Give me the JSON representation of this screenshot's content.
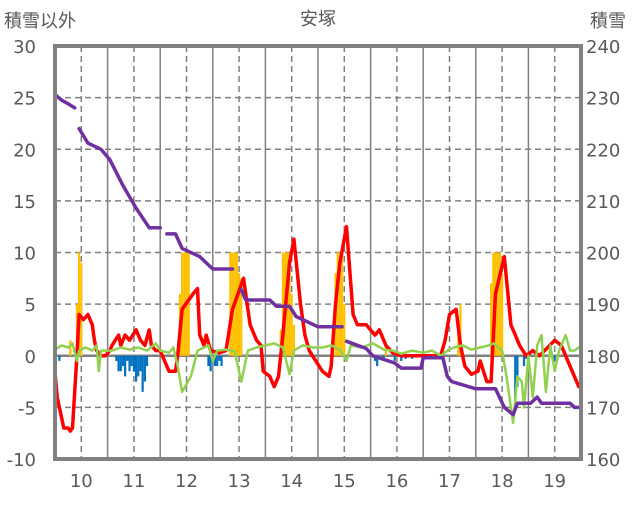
{
  "chart_data": {
    "type": "line",
    "title": "安塚",
    "ylabel_left": "積雪以外",
    "ylabel_right": "積雪",
    "ylim_left": [
      -10,
      30
    ],
    "ylim_right": [
      160,
      240
    ],
    "yticks_left": [
      "30",
      "25",
      "20",
      "15",
      "10",
      "5",
      "0",
      "-5",
      "-10"
    ],
    "yticks_right": [
      "240",
      "230",
      "220",
      "210",
      "200",
      "190",
      "180",
      "170",
      "160"
    ],
    "x_unit": "hours from start of day 10",
    "xlim": [
      0,
      240
    ],
    "xtick_labels": [
      "10",
      "11",
      "12",
      "13",
      "14",
      "15",
      "16",
      "17",
      "18",
      "19"
    ],
    "grid": true,
    "colors": {
      "temp": "#FF0000",
      "green": "#92D050",
      "snow_depth": "#7030A0",
      "pos_bar": "#FFC000",
      "neg_bar": "#0070C0",
      "grid": "#808080"
    },
    "series": [
      {
        "name": "red",
        "axis": "left",
        "color": "#FF0000",
        "points": [
          [
            0,
            -1.6
          ],
          [
            1,
            -4
          ],
          [
            4,
            -7
          ],
          [
            6,
            -7
          ],
          [
            7,
            -7.3
          ],
          [
            8,
            -7
          ],
          [
            10,
            0
          ],
          [
            11,
            4
          ],
          [
            13,
            3.5
          ],
          [
            15,
            4
          ],
          [
            17,
            3
          ],
          [
            18,
            1.5
          ],
          [
            19,
            0.5
          ],
          [
            21,
            0
          ],
          [
            23,
            0
          ],
          [
            25,
            0.5
          ],
          [
            26,
            1
          ],
          [
            29,
            2
          ],
          [
            30,
            1
          ],
          [
            32,
            2
          ],
          [
            34,
            1.5
          ],
          [
            37,
            2.5
          ],
          [
            39,
            1.5
          ],
          [
            41,
            1
          ],
          [
            43,
            2.5
          ],
          [
            44,
            1
          ],
          [
            46,
            0.5
          ],
          [
            48,
            0.5
          ],
          [
            50,
            -0.5
          ],
          [
            52,
            -1.5
          ],
          [
            55,
            -1.5
          ],
          [
            56,
            0
          ],
          [
            58,
            4.5
          ],
          [
            63,
            6
          ],
          [
            65,
            6.5
          ],
          [
            66,
            2
          ],
          [
            68,
            1
          ],
          [
            69,
            2
          ],
          [
            71,
            0.5
          ],
          [
            75,
            0.3
          ],
          [
            78,
            0.5
          ],
          [
            81,
            4.5
          ],
          [
            86,
            7.5
          ],
          [
            89,
            3
          ],
          [
            92,
            1.5
          ],
          [
            94,
            1
          ],
          [
            95,
            -1.5
          ],
          [
            98,
            -2
          ],
          [
            100,
            -3
          ],
          [
            102,
            -2
          ],
          [
            104,
            2
          ],
          [
            107,
            9
          ],
          [
            109,
            11.3
          ],
          [
            112,
            5
          ],
          [
            114,
            2
          ],
          [
            116,
            0.5
          ],
          [
            119,
            -0.5
          ],
          [
            122,
            -1.5
          ],
          [
            125,
            -2
          ],
          [
            126,
            -1
          ],
          [
            128,
            5
          ],
          [
            130,
            9
          ],
          [
            133,
            12.5
          ],
          [
            136,
            4
          ],
          [
            138,
            3
          ],
          [
            142,
            3
          ],
          [
            146,
            2
          ],
          [
            148,
            2.5
          ],
          [
            151,
            1
          ],
          [
            154,
            0.3
          ],
          [
            158,
            0
          ],
          [
            176,
            0
          ],
          [
            178,
            1.5
          ],
          [
            180,
            4
          ],
          [
            183,
            4.5
          ],
          [
            185,
            1
          ],
          [
            187,
            -1
          ],
          [
            190,
            -1.8
          ],
          [
            193,
            -1.5
          ],
          [
            194,
            -0.5
          ],
          [
            197,
            -2.5
          ],
          [
            199,
            -2.5
          ],
          [
            201,
            6
          ],
          [
            205,
            9.6
          ],
          [
            208,
            3
          ],
          [
            210,
            2
          ],
          [
            212,
            1
          ],
          [
            215,
            0
          ],
          [
            218,
            0.5
          ],
          [
            221,
            0
          ],
          [
            228,
            1.5
          ],
          [
            231,
            1
          ],
          [
            235,
            -1
          ],
          [
            237,
            -2
          ],
          [
            239,
            -3
          ]
        ]
      },
      {
        "name": "green",
        "axis": "left",
        "color": "#92D050",
        "points": [
          [
            0,
            0.6
          ],
          [
            3,
            1
          ],
          [
            6,
            0.8
          ],
          [
            8,
            1.2
          ],
          [
            10,
            -0.5
          ],
          [
            11,
            0.5
          ],
          [
            14,
            0.8
          ],
          [
            17,
            0.5
          ],
          [
            19,
            1
          ],
          [
            20,
            -1.5
          ],
          [
            21,
            0.5
          ],
          [
            26,
            0.5
          ],
          [
            30,
            0.8
          ],
          [
            34,
            0.6
          ],
          [
            38,
            0.8
          ],
          [
            42,
            0.5
          ],
          [
            46,
            1.2
          ],
          [
            48,
            0.5
          ],
          [
            52,
            0.3
          ],
          [
            54,
            0.8
          ],
          [
            56,
            -1
          ],
          [
            58,
            -3.5
          ],
          [
            62,
            -2
          ],
          [
            65,
            0.5
          ],
          [
            68,
            0.8
          ],
          [
            70,
            1
          ],
          [
            72,
            -0.5
          ],
          [
            74,
            0.5
          ],
          [
            78,
            0.6
          ],
          [
            82,
            0.4
          ],
          [
            85,
            -2.5
          ],
          [
            88,
            0.5
          ],
          [
            92,
            0.8
          ],
          [
            96,
            1
          ],
          [
            100,
            1.2
          ],
          [
            104,
            0.8
          ],
          [
            107,
            -1.8
          ],
          [
            109,
            0.5
          ],
          [
            113,
            1
          ],
          [
            118,
            0.8
          ],
          [
            122,
            0.8
          ],
          [
            126,
            1
          ],
          [
            130,
            0.6
          ],
          [
            133,
            -0.5
          ],
          [
            135,
            1
          ],
          [
            140,
            0.8
          ],
          [
            145,
            1.2
          ],
          [
            150,
            0.6
          ],
          [
            154,
            0.5
          ],
          [
            158,
            0.2
          ],
          [
            163,
            0.5
          ],
          [
            168,
            0.3
          ],
          [
            172,
            0.5
          ],
          [
            176,
            0
          ],
          [
            179,
            0.5
          ],
          [
            182,
            0.8
          ],
          [
            186,
            1
          ],
          [
            190,
            0.6
          ],
          [
            194,
            0.8
          ],
          [
            198,
            1
          ],
          [
            200,
            1.2
          ],
          [
            204,
            0.5
          ],
          [
            206,
            -2
          ],
          [
            209,
            -6.5
          ],
          [
            211,
            -2
          ],
          [
            213,
            -2.5
          ],
          [
            214,
            -5
          ],
          [
            216,
            0
          ],
          [
            218,
            -4
          ],
          [
            220,
            1
          ],
          [
            222,
            2
          ],
          [
            224,
            -3.5
          ],
          [
            226,
            1
          ],
          [
            228,
            -1.5
          ],
          [
            230,
            0.5
          ],
          [
            233,
            2
          ],
          [
            235,
            0.5
          ],
          [
            237,
            0.5
          ],
          [
            239,
            0.8
          ]
        ]
      },
      {
        "name": "snow_depth",
        "axis": "right",
        "color": "#7030A0",
        "points": [
          [
            0,
            230.6
          ],
          [
            3,
            229.5
          ],
          [
            6,
            228.8
          ],
          [
            9,
            228
          ],
          [
            9.5,
            null
          ],
          [
            11,
            224
          ],
          [
            15,
            221.2
          ],
          [
            21,
            220
          ],
          [
            25,
            218
          ],
          [
            31,
            213
          ],
          [
            37,
            208.6
          ],
          [
            43,
            204.8
          ],
          [
            48,
            204.8
          ],
          [
            49,
            null
          ],
          [
            51,
            203.6
          ],
          [
            55,
            203.6
          ],
          [
            58,
            200.8
          ],
          [
            66,
            199.2
          ],
          [
            72,
            196.8
          ],
          [
            81,
            196.8
          ],
          [
            82,
            null
          ],
          [
            85,
            192.8
          ],
          [
            87,
            190.8
          ],
          [
            98,
            190.8
          ],
          [
            101,
            189.6
          ],
          [
            107,
            189.6
          ],
          [
            110,
            187.6
          ],
          [
            120,
            185.6
          ],
          [
            131,
            185.6
          ],
          [
            132,
            null
          ],
          [
            133,
            182.8
          ],
          [
            142,
            181.4
          ],
          [
            145,
            180
          ],
          [
            155,
            178.6
          ],
          [
            158,
            177.6
          ],
          [
            167,
            177.6
          ],
          [
            168,
            179.6
          ],
          [
            177,
            179.6
          ],
          [
            179,
            176
          ],
          [
            181,
            175
          ],
          [
            192,
            173.6
          ],
          [
            201,
            173.6
          ],
          [
            205,
            170
          ],
          [
            209,
            168.6
          ],
          [
            211,
            170.8
          ],
          [
            217,
            170.8
          ],
          [
            220,
            172
          ],
          [
            222,
            170.8
          ],
          [
            235,
            170.8
          ],
          [
            237,
            170
          ],
          [
            240,
            170
          ]
        ]
      }
    ],
    "bars_positive": {
      "color": "#FFC000",
      "points": [
        [
          7,
          1.5
        ],
        [
          10,
          5
        ],
        [
          11,
          10
        ],
        [
          12,
          9
        ],
        [
          57,
          6
        ],
        [
          58,
          10
        ],
        [
          59,
          10
        ],
        [
          60,
          10
        ],
        [
          61,
          10
        ],
        [
          80,
          10
        ],
        [
          81,
          10
        ],
        [
          82,
          10
        ],
        [
          83,
          10
        ],
        [
          84,
          8
        ],
        [
          85,
          7.5
        ],
        [
          103,
          2.5
        ],
        [
          104,
          10
        ],
        [
          105,
          10
        ],
        [
          106,
          10
        ],
        [
          107,
          10
        ],
        [
          108,
          6
        ],
        [
          109,
          3
        ],
        [
          128,
          8
        ],
        [
          129,
          10
        ],
        [
          130,
          10
        ],
        [
          131,
          10
        ],
        [
          132,
          5
        ],
        [
          151,
          1
        ],
        [
          184,
          3
        ],
        [
          185,
          5
        ],
        [
          199,
          7
        ],
        [
          200,
          10
        ],
        [
          201,
          10
        ],
        [
          202,
          10
        ],
        [
          203,
          10
        ],
        [
          204,
          8
        ]
      ]
    },
    "bars_negative": {
      "color": "#0070C0",
      "points": [
        [
          2,
          -0.5
        ],
        [
          28,
          -0.5
        ],
        [
          29,
          -1.5
        ],
        [
          30,
          -1.5
        ],
        [
          31,
          -1
        ],
        [
          32,
          -2
        ],
        [
          33,
          -0.5
        ],
        [
          34,
          -1.5
        ],
        [
          35,
          -1
        ],
        [
          36,
          -1.5
        ],
        [
          37,
          -2.5
        ],
        [
          38,
          -2
        ],
        [
          39,
          -1.5
        ],
        [
          40,
          -3.5
        ],
        [
          41,
          -2.5
        ],
        [
          42,
          -1
        ],
        [
          70,
          -1
        ],
        [
          71,
          -1.5
        ],
        [
          72,
          -0.5
        ],
        [
          73,
          -1
        ],
        [
          74,
          -1
        ],
        [
          75,
          -0.5
        ],
        [
          76,
          -1
        ],
        [
          146,
          -0.5
        ],
        [
          147,
          -1
        ],
        [
          150,
          -0.3
        ],
        [
          155,
          -0.5
        ],
        [
          158,
          -0.5
        ],
        [
          160,
          -0.3
        ],
        [
          163,
          -0.3
        ],
        [
          210,
          -5
        ],
        [
          211,
          -3
        ],
        [
          214,
          -1
        ],
        [
          215,
          -0.3
        ],
        [
          228,
          -0.5
        ]
      ]
    }
  }
}
